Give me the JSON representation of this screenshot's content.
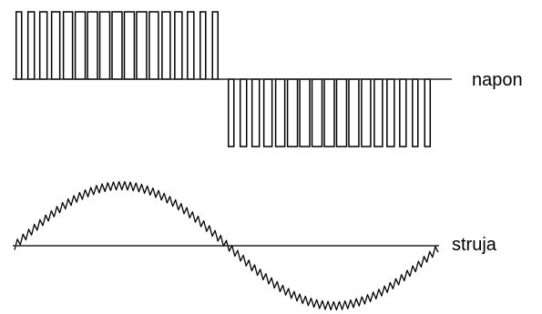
{
  "labels": {
    "voltage": "napon",
    "current": "struja"
  },
  "colors": {
    "stroke": "#000000",
    "axis": "#222222",
    "background": "#ffffff"
  }
}
